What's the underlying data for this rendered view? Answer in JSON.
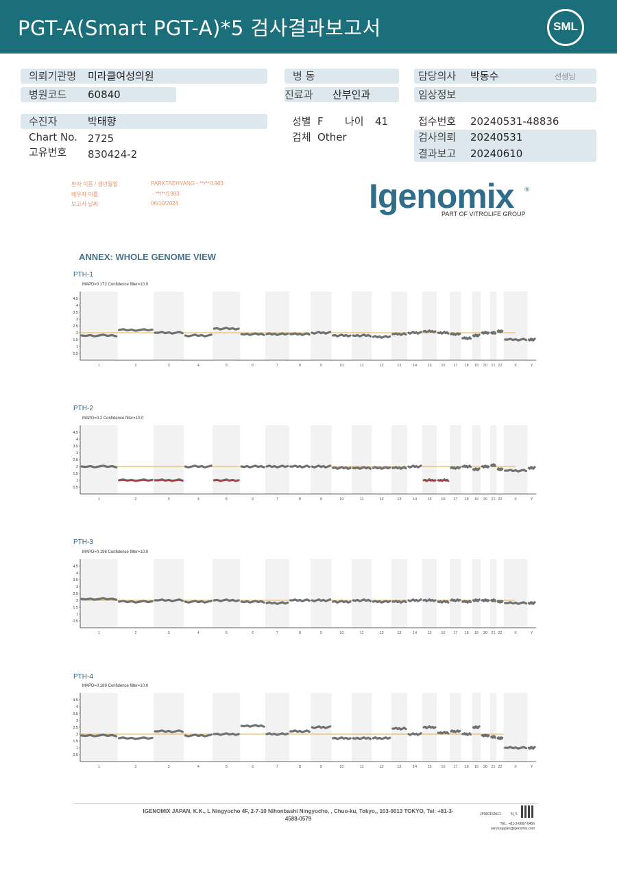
{
  "header": {
    "title": "PGT-A(Smart  PGT-A)*5 검사결과보고서",
    "logo_text": "SML"
  },
  "info": {
    "institution_label": "의뢰기관명",
    "institution_value": "미라클여성의원",
    "ward_label": "병  동",
    "ward_value": "",
    "doctor_label": "담당의사",
    "doctor_value": "박동수",
    "doctor_suffix": "선생님",
    "hospital_code_label": "병원코드",
    "hospital_code_value": "60840",
    "department_label": "진료과",
    "department_value": "산부인과",
    "clinical_label": "임상정보",
    "clinical_value": "",
    "patient_label": "수진자",
    "patient_value": "박태향",
    "sex_label": "성별",
    "sex_value": "F",
    "age_label": "나이",
    "age_value": "41",
    "receipt_label": "접수번호",
    "receipt_value": "20240531-48836",
    "chart_label": "Chart No.",
    "chart_value": "2725",
    "specimen_label": "검체",
    "specimen_value": "Other",
    "request_label": "검사의뢰",
    "request_value": "20240531",
    "id_label": "고유번호",
    "id_value": "830424-2",
    "report_label": "결과보고",
    "report_value": "20240610"
  },
  "patient_meta": {
    "name_label": "환자 이름 / 생년월일",
    "name_value": "PARKTAEHYANG - **/**/1983",
    "partner_label": "배우자 이름:",
    "partner_value": "- **/**/1983",
    "date_label": "보고서 날짜:",
    "date_value": "06/10/2024"
  },
  "logo": {
    "name": "Igenomix",
    "tagline": "PART OF VITROLIFE GROUP"
  },
  "annex_title": "ANNEX: WHOLE GENOME VIEW",
  "chart_data": [
    {
      "type": "line",
      "name": "PTH-1",
      "subtitle": "MAPD=0.172 Confidence filter=10.0",
      "ylim": [
        0,
        5
      ],
      "y_ticks": [
        "4.5",
        "4",
        "3.5",
        "3",
        "2.5",
        "2",
        "1.5",
        "1",
        "0.5"
      ],
      "reference": 2,
      "categories": [
        "1",
        "2",
        "3",
        "4",
        "5",
        "6",
        "7",
        "8",
        "9",
        "10",
        "11",
        "12",
        "13",
        "14",
        "15",
        "16",
        "17",
        "18",
        "19",
        "20",
        "21",
        "22",
        "X",
        "Y"
      ],
      "values": [
        1.8,
        2.2,
        2.0,
        1.8,
        2.3,
        1.9,
        1.9,
        1.9,
        2.0,
        1.8,
        1.8,
        1.7,
        1.9,
        2.0,
        2.1,
        2.0,
        1.9,
        1.6,
        1.8,
        2.0,
        2.0,
        2.1,
        1.5,
        1.5
      ],
      "highlight": []
    },
    {
      "type": "line",
      "name": "PTH-2",
      "subtitle": "MAPD=0.2 Confidence filter=10.0",
      "ylim": [
        0,
        5
      ],
      "y_ticks": [
        "4.5",
        "4",
        "3.5",
        "3",
        "2.5",
        "2",
        "1.5",
        "1",
        "0.5"
      ],
      "reference": 2,
      "categories": [
        "1",
        "2",
        "3",
        "4",
        "5",
        "6",
        "7",
        "8",
        "9",
        "10",
        "11",
        "12",
        "13",
        "14",
        "15",
        "16",
        "17",
        "18",
        "19",
        "20",
        "21",
        "22",
        "X",
        "Y"
      ],
      "values": [
        2.0,
        1.0,
        1.0,
        2.0,
        1.0,
        2.0,
        2.0,
        2.0,
        2.0,
        1.9,
        1.9,
        1.9,
        1.9,
        2.0,
        1.0,
        1.0,
        1.9,
        2.0,
        1.8,
        2.0,
        2.1,
        1.8,
        1.7,
        1.9
      ],
      "highlight": [
        "2",
        "3",
        "5",
        "15",
        "16"
      ]
    },
    {
      "type": "line",
      "name": "PTH-3",
      "subtitle": "MAPD=0.196 Confidence filter=10.0",
      "ylim": [
        0,
        5
      ],
      "y_ticks": [
        "4.5",
        "4",
        "3.5",
        "3",
        "2.5",
        "2",
        "1.5",
        "1",
        "0.5"
      ],
      "reference": 2,
      "categories": [
        "1",
        "2",
        "3",
        "4",
        "5",
        "6",
        "7",
        "8",
        "9",
        "10",
        "11",
        "12",
        "13",
        "14",
        "15",
        "16",
        "17",
        "18",
        "19",
        "20",
        "21",
        "22",
        "X",
        "Y"
      ],
      "values": [
        2.1,
        1.9,
        2.0,
        1.9,
        2.0,
        1.9,
        1.8,
        2.0,
        2.0,
        1.9,
        2.0,
        1.9,
        1.9,
        2.0,
        2.0,
        1.9,
        2.0,
        1.9,
        2.0,
        2.0,
        2.0,
        1.9,
        1.8,
        1.8
      ],
      "highlight": []
    },
    {
      "type": "line",
      "name": "PTH-4",
      "subtitle": "MAPD=0.189 Confidence filter=10.0",
      "ylim": [
        0,
        5
      ],
      "y_ticks": [
        "4.5",
        "4",
        "3.5",
        "3",
        "2.5",
        "2",
        "1.5",
        "1",
        "0.5"
      ],
      "reference": 2,
      "reference_sex": 1,
      "categories": [
        "1",
        "2",
        "3",
        "4",
        "5",
        "6",
        "7",
        "8",
        "9",
        "10",
        "11",
        "12",
        "13",
        "14",
        "15",
        "16",
        "17",
        "18",
        "19",
        "20",
        "21",
        "22",
        "X",
        "Y"
      ],
      "values": [
        1.9,
        1.7,
        2.2,
        1.9,
        2.0,
        2.6,
        2.0,
        2.2,
        2.5,
        1.7,
        1.7,
        1.7,
        2.4,
        2.0,
        2.5,
        2.1,
        2.2,
        2.0,
        2.5,
        1.9,
        1.8,
        1.7,
        1.0,
        1.0
      ],
      "highlight": []
    }
  ],
  "footer": {
    "address": "IGENOMIX JAPAN, K.K., L Ningyocho 4F, 2-7-10 Nihonbashi Ningyocho, , Chuo-ku, Tokyo,, 103-0013 TOKYO, Tel: +81-3-4588-0579",
    "doc_code": "JP000153511",
    "page": "5 | 6",
    "tel": "TEL: +81-3-6667-0456",
    "email": "servicejapan@igenomix.com"
  },
  "colors": {
    "header_bg": "#1b6f7a",
    "reference_line": "#e0b040",
    "data_points": "#707070",
    "loss_segment": "#c0282a",
    "band_fill": "#f2f2f2"
  }
}
